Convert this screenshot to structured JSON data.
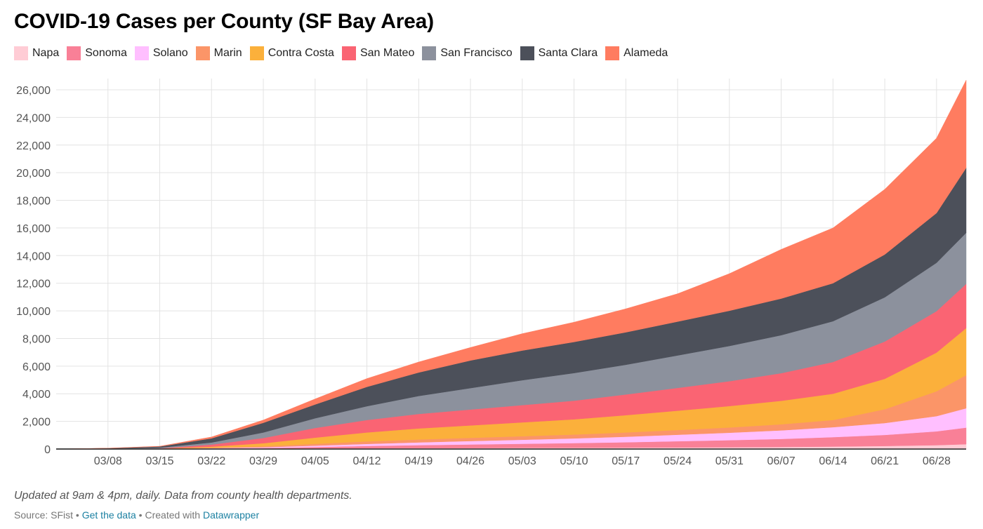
{
  "title": "COVID-19 Cases per County (SF Bay Area)",
  "notes": "Updated at 9am & 4pm, daily. Data from county health departments.",
  "footer": {
    "source": "Source: SFist",
    "separator": "•",
    "get_data": "Get the data",
    "created_with": "Created with",
    "datawrapper": "Datawrapper"
  },
  "chart_data": {
    "type": "area",
    "stacked": true,
    "grid": true,
    "legend_position": "top",
    "x_ticks": [
      "03/08",
      "03/15",
      "03/22",
      "03/29",
      "04/05",
      "04/12",
      "04/19",
      "04/26",
      "05/03",
      "05/10",
      "05/17",
      "05/24",
      "05/31",
      "06/07",
      "06/14",
      "06/21",
      "06/28"
    ],
    "y_ticks": [
      "0",
      "2,000",
      "4,000",
      "6,000",
      "8,000",
      "10,000",
      "12,000",
      "14,000",
      "16,000",
      "18,000",
      "20,000",
      "22,000",
      "24,000",
      "26,000"
    ],
    "ylim": [
      0,
      26000
    ],
    "x": [
      "03/01",
      "03/08",
      "03/15",
      "03/22",
      "03/29",
      "04/05",
      "04/12",
      "04/19",
      "04/26",
      "05/03",
      "05/10",
      "05/17",
      "05/24",
      "05/31",
      "06/07",
      "06/14",
      "06/21",
      "06/28",
      "07/02"
    ],
    "series": [
      {
        "name": "Napa",
        "color": "#ffccd5",
        "values": [
          0,
          1,
          2,
          8,
          18,
          35,
          50,
          60,
          70,
          80,
          90,
          100,
          115,
          130,
          150,
          180,
          220,
          280,
          350
        ]
      },
      {
        "name": "Sonoma",
        "color": "#f98097",
        "values": [
          0,
          2,
          5,
          30,
          60,
          110,
          170,
          220,
          260,
          300,
          340,
          390,
          450,
          510,
          580,
          680,
          800,
          1000,
          1200
        ]
      },
      {
        "name": "Solano",
        "color": "#ffbfff",
        "values": [
          0,
          2,
          5,
          25,
          50,
          100,
          150,
          200,
          250,
          290,
          340,
          400,
          470,
          540,
          620,
          720,
          860,
          1100,
          1400
        ]
      },
      {
        "name": "Marin",
        "color": "#fb9568",
        "values": [
          0,
          2,
          5,
          30,
          70,
          130,
          180,
          210,
          230,
          260,
          280,
          310,
          340,
          380,
          440,
          520,
          1000,
          1800,
          2400
        ]
      },
      {
        "name": "Contra Costa",
        "color": "#fbb03b",
        "values": [
          0,
          5,
          15,
          80,
          220,
          450,
          650,
          800,
          900,
          1000,
          1100,
          1250,
          1400,
          1550,
          1700,
          1900,
          2200,
          2800,
          3400
        ]
      },
      {
        "name": "San Mateo",
        "color": "#fa6473",
        "values": [
          0,
          5,
          20,
          150,
          380,
          700,
          900,
          1050,
          1150,
          1250,
          1350,
          1500,
          1650,
          1800,
          2000,
          2300,
          2700,
          3000,
          3200
        ]
      },
      {
        "name": "San Francisco",
        "color": "#8c919d",
        "values": [
          0,
          10,
          50,
          150,
          400,
          700,
          1000,
          1300,
          1550,
          1800,
          2000,
          2150,
          2350,
          2550,
          2750,
          2950,
          3200,
          3500,
          3700
        ]
      },
      {
        "name": "Santa Clara",
        "color": "#4c505a",
        "values": [
          0,
          30,
          80,
          300,
          700,
          1000,
          1400,
          1700,
          2000,
          2150,
          2250,
          2350,
          2450,
          2550,
          2650,
          2750,
          3100,
          3600,
          4700
        ]
      },
      {
        "name": "Alameda",
        "color": "#ff7c60",
        "values": [
          0,
          5,
          20,
          100,
          200,
          400,
          600,
          760,
          940,
          1220,
          1430,
          1700,
          2015,
          2685,
          3560,
          4000,
          4720,
          5420,
          6350
        ]
      }
    ]
  }
}
